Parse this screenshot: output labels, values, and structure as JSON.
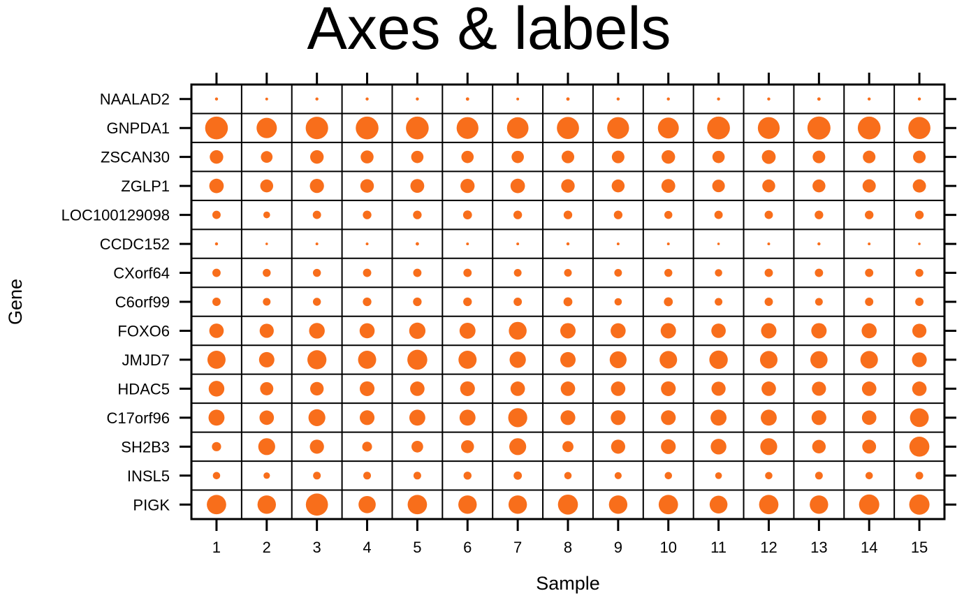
{
  "chart_data": {
    "type": "dot matrix",
    "title": "Axes & labels",
    "xlabel": "Sample",
    "ylabel": "Gene",
    "samples": [
      "1",
      "2",
      "3",
      "4",
      "5",
      "6",
      "7",
      "8",
      "9",
      "10",
      "11",
      "12",
      "13",
      "14",
      "15"
    ],
    "genes": [
      "NAALAD2",
      "GNPDA1",
      "ZSCAN30",
      "ZGLP1",
      "LOC100129098",
      "CCDC152",
      "CXorf64",
      "C6orf99",
      "FOXO6",
      "JMJD7",
      "HDAC5",
      "C17orf96",
      "SH2B3",
      "INSL5",
      "PIGK"
    ],
    "values": [
      [
        0.1,
        0.09,
        0.1,
        0.1,
        0.1,
        0.11,
        0.09,
        0.11,
        0.1,
        0.1,
        0.1,
        0.1,
        0.11,
        0.1,
        0.1
      ],
      [
        0.74,
        0.66,
        0.73,
        0.74,
        0.74,
        0.71,
        0.7,
        0.72,
        0.71,
        0.68,
        0.74,
        0.71,
        0.75,
        0.74,
        0.72
      ],
      [
        0.44,
        0.38,
        0.44,
        0.42,
        0.4,
        0.4,
        0.4,
        0.41,
        0.41,
        0.44,
        0.4,
        0.45,
        0.41,
        0.41,
        0.41
      ],
      [
        0.47,
        0.42,
        0.46,
        0.44,
        0.45,
        0.46,
        0.47,
        0.44,
        0.42,
        0.45,
        0.41,
        0.42,
        0.42,
        0.43,
        0.43
      ],
      [
        0.27,
        0.22,
        0.27,
        0.28,
        0.28,
        0.29,
        0.28,
        0.28,
        0.28,
        0.26,
        0.27,
        0.27,
        0.28,
        0.28,
        0.28
      ],
      [
        0.1,
        0.08,
        0.09,
        0.09,
        0.11,
        0.09,
        0.09,
        0.1,
        0.09,
        0.09,
        0.08,
        0.09,
        0.1,
        0.09,
        0.08
      ],
      [
        0.27,
        0.26,
        0.26,
        0.27,
        0.27,
        0.27,
        0.25,
        0.25,
        0.25,
        0.26,
        0.24,
        0.27,
        0.27,
        0.27,
        0.26
      ],
      [
        0.27,
        0.25,
        0.26,
        0.28,
        0.28,
        0.28,
        0.27,
        0.29,
        0.24,
        0.29,
        0.25,
        0.27,
        0.25,
        0.27,
        0.27
      ],
      [
        0.47,
        0.46,
        0.51,
        0.49,
        0.53,
        0.52,
        0.58,
        0.5,
        0.49,
        0.5,
        0.47,
        0.5,
        0.5,
        0.49,
        0.46
      ],
      [
        0.59,
        0.5,
        0.62,
        0.59,
        0.65,
        0.59,
        0.53,
        0.5,
        0.55,
        0.57,
        0.6,
        0.57,
        0.56,
        0.57,
        0.48
      ],
      [
        0.51,
        0.43,
        0.44,
        0.48,
        0.47,
        0.48,
        0.47,
        0.47,
        0.47,
        0.48,
        0.46,
        0.47,
        0.46,
        0.47,
        0.47
      ],
      [
        0.52,
        0.47,
        0.55,
        0.48,
        0.52,
        0.52,
        0.62,
        0.48,
        0.48,
        0.48,
        0.52,
        0.52,
        0.48,
        0.47,
        0.61
      ],
      [
        0.3,
        0.55,
        0.46,
        0.32,
        0.38,
        0.42,
        0.55,
        0.36,
        0.46,
        0.48,
        0.51,
        0.55,
        0.44,
        0.45,
        0.65
      ],
      [
        0.24,
        0.21,
        0.25,
        0.25,
        0.25,
        0.26,
        0.27,
        0.24,
        0.23,
        0.24,
        0.22,
        0.24,
        0.25,
        0.24,
        0.25
      ],
      [
        0.63,
        0.6,
        0.72,
        0.56,
        0.63,
        0.6,
        0.6,
        0.65,
        0.6,
        0.63,
        0.58,
        0.63,
        0.6,
        0.66,
        0.66
      ]
    ],
    "colors": {
      "dot": "#f86e1b",
      "grid": "#000000",
      "background": "#ffffff"
    }
  }
}
